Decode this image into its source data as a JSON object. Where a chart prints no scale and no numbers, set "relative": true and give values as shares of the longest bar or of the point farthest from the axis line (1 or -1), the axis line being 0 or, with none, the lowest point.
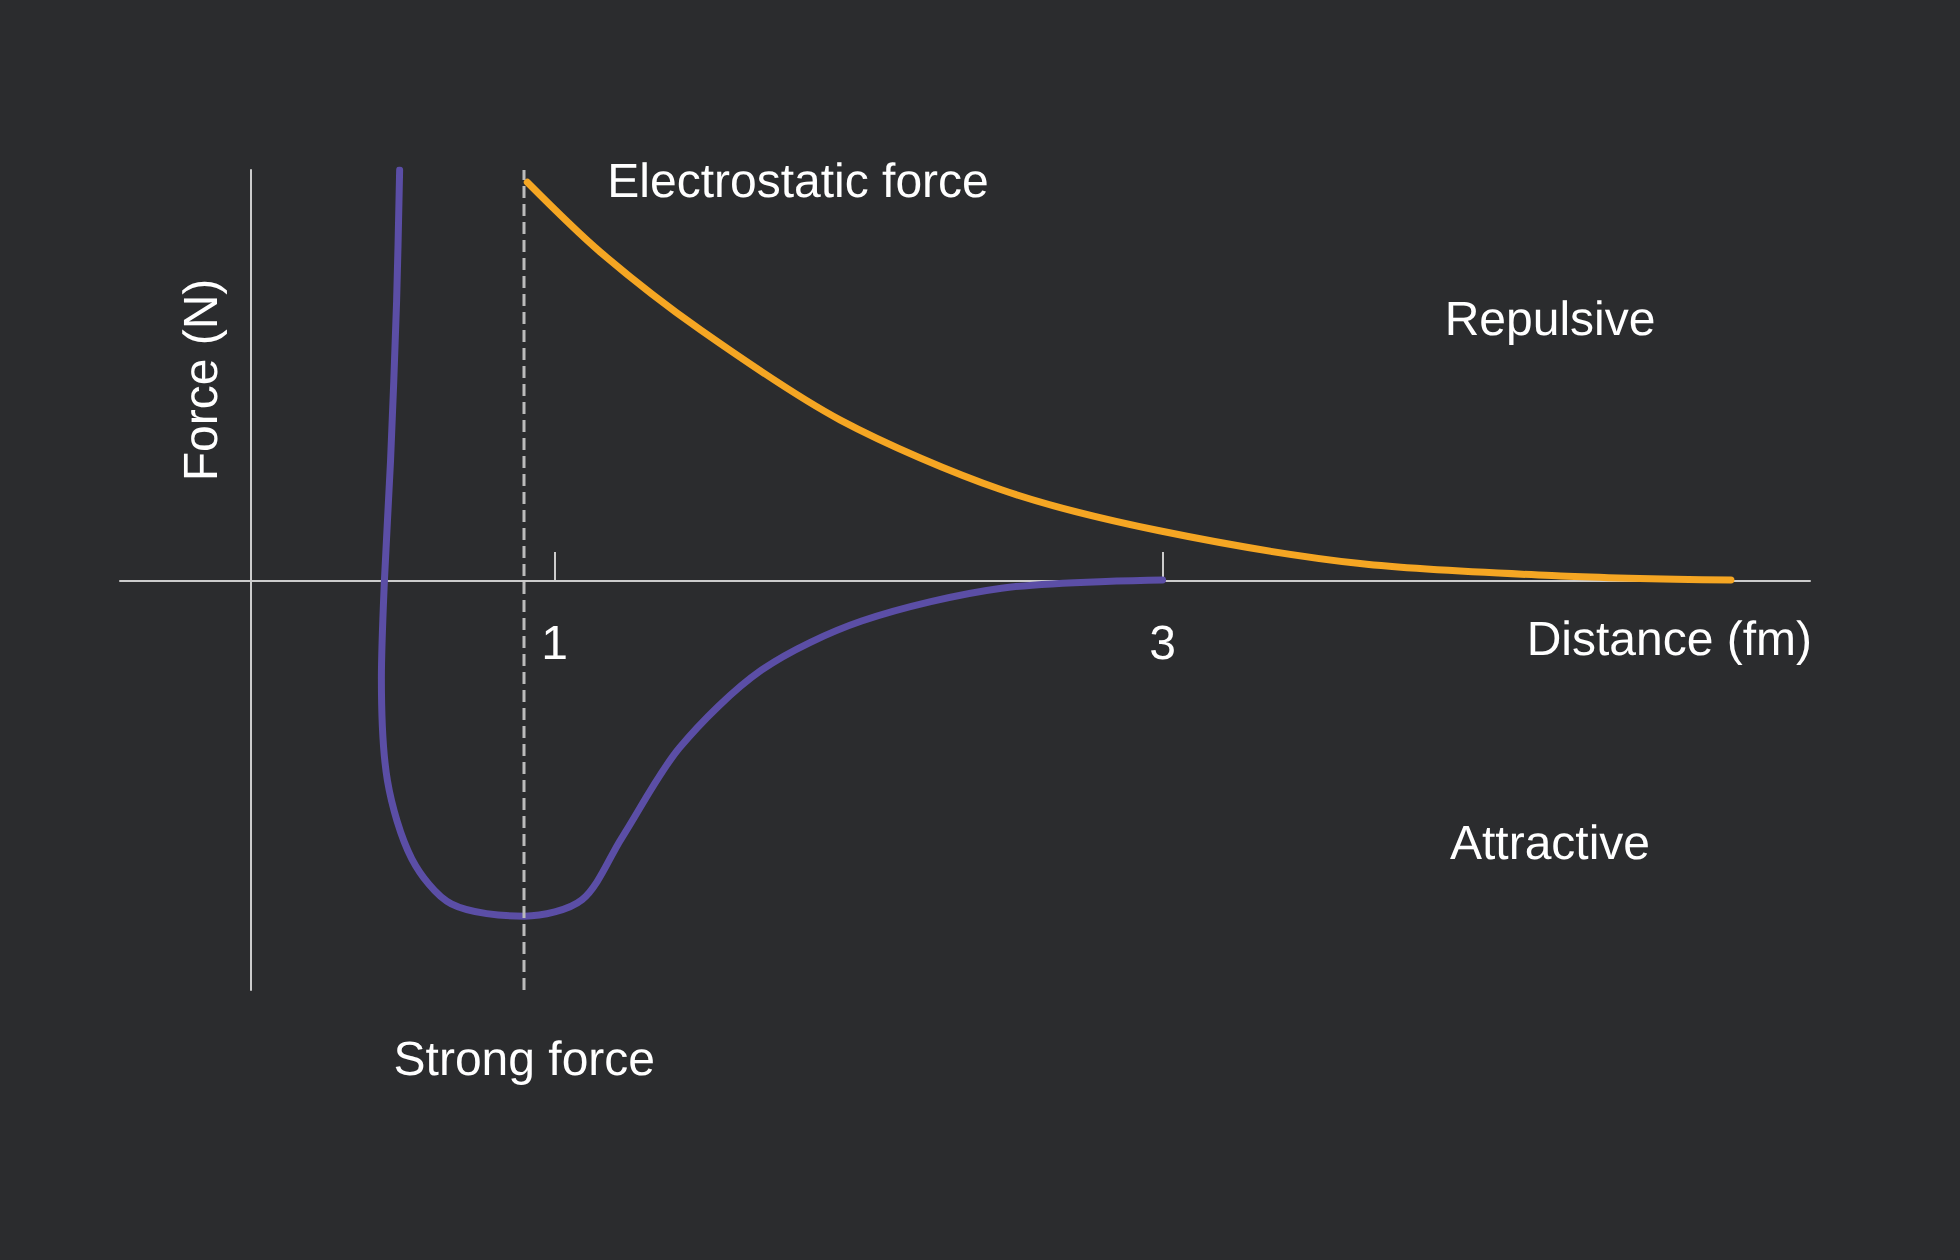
{
  "chart_data": {
    "type": "line",
    "relative": true,
    "xlabel": "Distance (fm)",
    "ylabel": "Force (N)",
    "xlim": [
      -0.43,
      5.13
    ],
    "xticks": [
      1,
      3
    ],
    "grid": false,
    "legend": false,
    "marker": "none",
    "line_style": "solid",
    "annotations": [
      "Repulsive",
      "Attractive"
    ],
    "ref_lines": [
      {
        "axis": "x",
        "value": 0.9,
        "label": null,
        "color": "#bbbbbb",
        "line_style": "dashed"
      }
    ],
    "series": [
      {
        "name": "Strong force",
        "color": "#5b4ea6",
        "x": [
          0.49,
          0.48,
          0.46,
          0.44,
          0.43,
          0.45,
          0.53,
          0.66,
          0.9,
          1.09,
          1.22,
          1.41,
          1.68,
          2.01,
          2.47,
          3.0
        ],
        "values": [
          1.0,
          0.68,
          0.29,
          0,
          -0.24,
          -0.49,
          -0.68,
          -0.79,
          -0.82,
          -0.78,
          -0.63,
          -0.41,
          -0.22,
          -0.1,
          -0.02,
          0
        ]
      },
      {
        "name": "Electrostatic force",
        "color": "#f5a623",
        "x": [
          0.91,
          1.15,
          1.48,
          1.94,
          2.47,
          2.99,
          3.65,
          4.31,
          4.87
        ],
        "values": [
          0.97,
          0.8,
          0.61,
          0.39,
          0.22,
          0.12,
          0.04,
          0.01,
          0
        ]
      }
    ]
  }
}
